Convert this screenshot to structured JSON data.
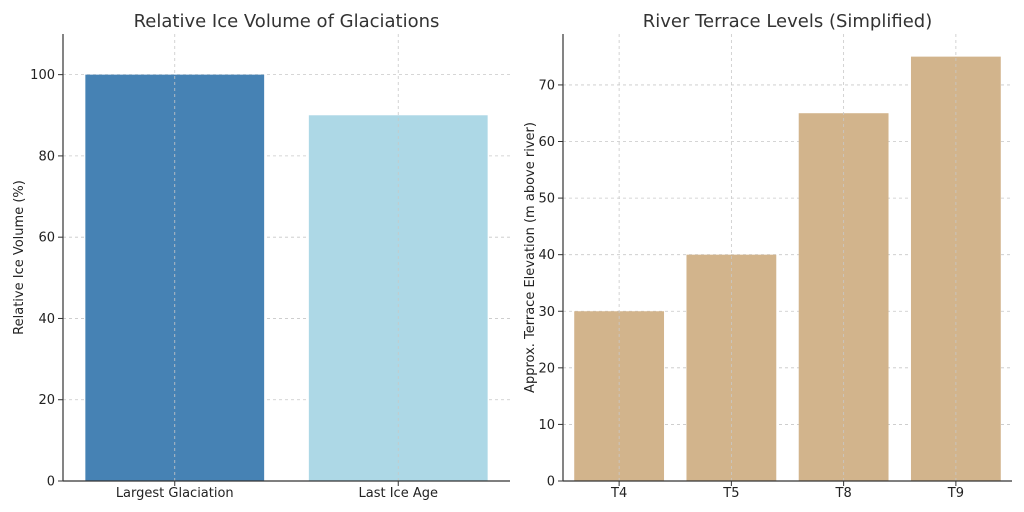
{
  "chart_data": [
    {
      "type": "bar",
      "title": "Relative Ice Volume of Glaciations",
      "xlabel": "",
      "ylabel": "Relative Ice Volume (%)",
      "categories": [
        "Largest Glaciation",
        "Last Ice Age"
      ],
      "values": [
        100,
        90
      ],
      "colors": [
        "#4682b4",
        "#add8e6"
      ],
      "ylim": [
        0,
        110
      ],
      "yticks": [
        0,
        20,
        40,
        60,
        80,
        100
      ],
      "grid": true,
      "legend": "none"
    },
    {
      "type": "bar",
      "title": "River Terrace Levels (Simplified)",
      "xlabel": "",
      "ylabel": "Approx. Terrace Elevation (m above river)",
      "categories": [
        "T4",
        "T5",
        "T8",
        "T9"
      ],
      "values": [
        30,
        40,
        65,
        75
      ],
      "colors": [
        "#d2b48c",
        "#d2b48c",
        "#d2b48c",
        "#d2b48c"
      ],
      "ylim": [
        0,
        79
      ],
      "yticks": [
        0,
        10,
        20,
        30,
        40,
        50,
        60,
        70
      ],
      "grid": true,
      "legend": "none"
    }
  ]
}
